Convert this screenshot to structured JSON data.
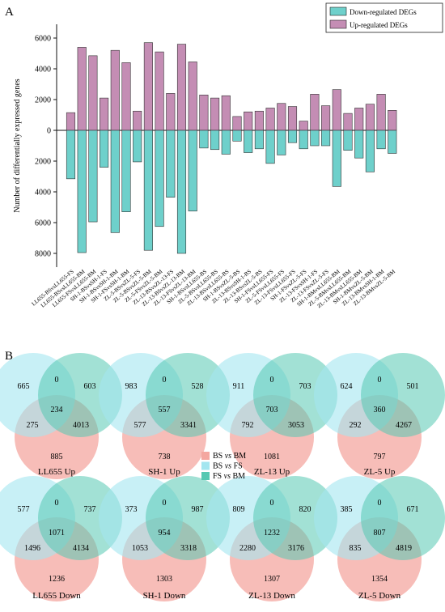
{
  "panel_a": {
    "label": "A",
    "chart_data": {
      "type": "bar",
      "ylabel": "Number of differentially expressed genes",
      "ylim": [
        -9000,
        6500
      ],
      "ytick_labels": [
        "6000",
        "4000",
        "2000",
        "0",
        "2000",
        "4000",
        "6000",
        "8000"
      ],
      "ytick_values": [
        6000,
        4000,
        2000,
        0,
        -2000,
        -4000,
        -6000,
        -8000
      ],
      "legend": {
        "placement": "top-right",
        "down_label": "Down-regulated DEGs",
        "up_label": "Up-regulated DEGs"
      },
      "colors": {
        "up": "#c48db4",
        "down": "#6ed0cb"
      },
      "categories": [
        "LL655-BSvsLL655-FS",
        "LL655-BSvsLL655-BM",
        "LL655-FSvsLL655-BM",
        "SH-1-BSvsSH-1-FS",
        "SH-1-BSvsSH-1-BM",
        "SH-1-FSvsSH-1-BM",
        "ZL-5-BSvsZL-5-FS",
        "ZL-5-BSvsZL-5-BM",
        "ZL-5-FSvsZL-5-BM",
        "ZL-13-BSvsZL-13-FS",
        "ZL-13-BSvsZL-13-BM",
        "ZL-13-FSvsZL-13-BM",
        "SH-1-BSvsLL655-BS",
        "ZL-5-BSvsLL655-BS",
        "ZL-13-BSvsLL655-BS",
        "SH-1-BSvsZL-5-BS",
        "ZL-13-BSvsSH-1-BS",
        "ZL-13-BSvsZL-5-BS",
        "SH-1-FSvsLL655-FS",
        "ZL-5-FSvsLL655-FS",
        "ZL-13-FSvsLL655-FS",
        "SH-1-FSvsZL-5-FS",
        "ZL-13-FSvsSH-1-FS",
        "ZL-13-FSvsZL-5-FS",
        "SH-1-BMvsLL655-BM",
        "ZL-5-BMvsLL655-BM",
        "ZL-13-BMvsLL655-BM",
        "SH-1-BMvsZL-5-BM",
        "ZL-13-BMvsSH-1-BM",
        "ZL-13-BMvsZL-5-BM"
      ],
      "series": [
        {
          "name": "Up-regulated DEGs",
          "values": [
            1150,
            5400,
            4850,
            2100,
            5200,
            4400,
            1250,
            5700,
            5100,
            2400,
            5600,
            4450,
            2300,
            2100,
            2250,
            900,
            1200,
            1250,
            1450,
            1750,
            1550,
            600,
            2350,
            1600,
            2650,
            1100,
            1450,
            1700,
            2350,
            1300
          ]
        },
        {
          "name": "Down-regulated DEGs",
          "values": [
            -3150,
            -7950,
            -5950,
            -2400,
            -6650,
            -5300,
            -2050,
            -7800,
            -6250,
            -4350,
            -8000,
            -5250,
            -1150,
            -1250,
            -1550,
            -700,
            -1450,
            -1200,
            -2150,
            -1600,
            -800,
            -1200,
            -1000,
            -1000,
            -3650,
            -1300,
            -1800,
            -2700,
            -1200,
            -1500
          ]
        }
      ]
    }
  },
  "panel_b": {
    "label": "B",
    "key": [
      {
        "a": "BS",
        "vs": "vs",
        "b": "BM",
        "color": "#f4a7a0"
      },
      {
        "a": "BS",
        "vs": "vs",
        "b": "FS",
        "color": "#a3e6f0"
      },
      {
        "a": "FS",
        "vs": "vs",
        "b": "BM",
        "color": "#55c8b2"
      }
    ],
    "venns": [
      {
        "title": "LL655 Up",
        "left": "665",
        "top": "0",
        "right": "603",
        "center": "234",
        "lower_left": "275",
        "lower_right": "4013",
        "bottom": "885"
      },
      {
        "title": "SH-1 Up",
        "left": "983",
        "top": "0",
        "right": "528",
        "center": "557",
        "lower_left": "577",
        "lower_right": "3341",
        "bottom": "738"
      },
      {
        "title": "ZL-13 Up",
        "left": "911",
        "top": "0",
        "right": "703",
        "center": "703",
        "lower_left": "792",
        "lower_right": "3053",
        "bottom": "1081"
      },
      {
        "title": "ZL-5 Up",
        "left": "624",
        "top": "0",
        "right": "501",
        "center": "360",
        "lower_left": "292",
        "lower_right": "4267",
        "bottom": "797"
      },
      {
        "title": "LL655 Down",
        "left": "577",
        "top": "0",
        "right": "737",
        "center": "1071",
        "lower_left": "1496",
        "lower_right": "4134",
        "bottom": "1236"
      },
      {
        "title": "SH-1 Down",
        "left": "373",
        "top": "0",
        "right": "987",
        "center": "954",
        "lower_left": "1053",
        "lower_right": "3318",
        "bottom": "1303"
      },
      {
        "title": "ZL-13 Down",
        "left": "809",
        "top": "0",
        "right": "820",
        "center": "1232",
        "lower_left": "2280",
        "lower_right": "3176",
        "bottom": "1307"
      },
      {
        "title": "ZL-5 Down",
        "left": "385",
        "top": "0",
        "right": "671",
        "center": "807",
        "lower_left": "835",
        "lower_right": "4819",
        "bottom": "1354"
      }
    ]
  }
}
